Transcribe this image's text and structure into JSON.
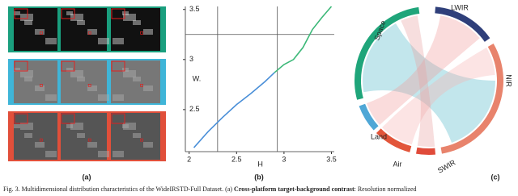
{
  "panels": {
    "a": {
      "label": "(a)"
    },
    "b": {
      "label": "(b)"
    },
    "c": {
      "label": "(c)",
      "groups": [
        "LWIR",
        "NIR",
        "SWIR",
        "Air",
        "Land",
        "Space"
      ]
    }
  },
  "chart_data": {
    "type": "line",
    "xlabel": "H",
    "ylabel": "W.",
    "xlim": [
      1.96,
      3.53
    ],
    "ylim": [
      2.08,
      3.53
    ],
    "xticks": [
      2.0,
      2.5,
      3.0,
      3.5
    ],
    "yticks": [
      2.5,
      3.0,
      3.5
    ],
    "reference_x": [
      2.3,
      2.93
    ],
    "reference_y": [
      3.25
    ],
    "series": [
      {
        "color": "#4a8fd8",
        "x": [
          2.05,
          2.2,
          2.35,
          2.5,
          2.65,
          2.8,
          2.9
        ],
        "values": [
          2.12,
          2.28,
          2.42,
          2.55,
          2.66,
          2.78,
          2.87
        ]
      },
      {
        "color": "#3cb878",
        "x": [
          2.9,
          3.0,
          3.1,
          3.2,
          3.3,
          3.4,
          3.5
        ],
        "values": [
          2.87,
          2.95,
          3.0,
          3.12,
          3.3,
          3.42,
          3.53
        ]
      }
    ]
  },
  "caption": {
    "prefix": "Fig. 3.  Multidimensional distribution characteristics of the WideIRSTD-Full Dataset. (a) ",
    "bold": "Cross-platform target-background contrast",
    "suffix": ": Resolution normalized"
  }
}
